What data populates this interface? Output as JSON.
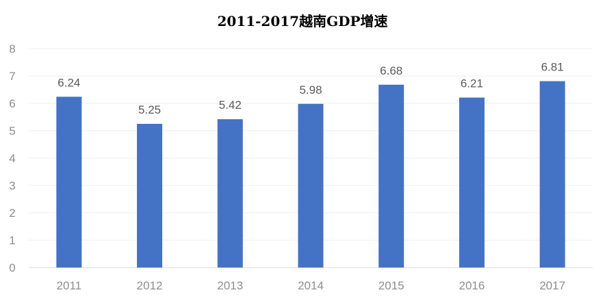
{
  "chart_data": {
    "type": "bar",
    "title": "2011-2017越南GDP增速",
    "categories": [
      "2011",
      "2012",
      "2013",
      "2014",
      "2015",
      "2016",
      "2017"
    ],
    "values": [
      6.24,
      5.25,
      5.42,
      5.98,
      6.68,
      6.21,
      6.81
    ],
    "data_labels": [
      "6.24",
      "5.25",
      "5.42",
      "5.98",
      "6.68",
      "6.21",
      "6.81"
    ],
    "yticks": [
      "0",
      "1",
      "2",
      "3",
      "4",
      "5",
      "6",
      "7",
      "8"
    ],
    "ylim": [
      0,
      8
    ],
    "grid": true,
    "legend": "none",
    "bar_color": "#4472C4"
  }
}
